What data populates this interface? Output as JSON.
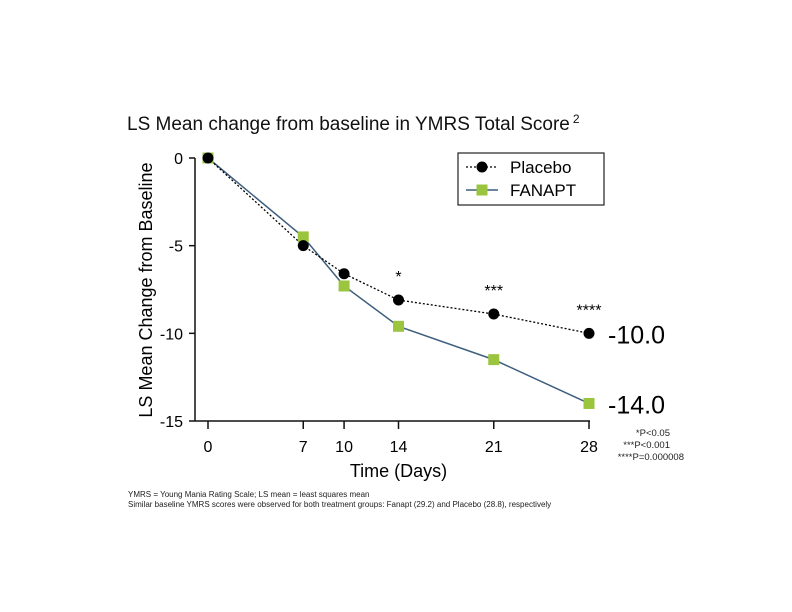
{
  "chart_data": {
    "type": "line",
    "title": "LS Mean change from baseline in YMRS Total Score",
    "title_superscript": "2",
    "xlabel": "Time (Days)",
    "ylabel": "LS Mean Change from Baseline",
    "x": [
      0,
      7,
      10,
      14,
      21,
      28
    ],
    "xticks": [
      "0",
      "7",
      "10",
      "14",
      "21",
      "28"
    ],
    "yticks": [
      0,
      -5,
      -10,
      -15
    ],
    "ytick_labels": [
      "0",
      "-5",
      "-10",
      "-15"
    ],
    "ylim": [
      -15,
      0
    ],
    "xlim": [
      0,
      28
    ],
    "legend_position": "top-right",
    "series": [
      {
        "name": "Placebo",
        "values": [
          0,
          -5.0,
          -6.6,
          -8.1,
          -8.9,
          -10.0
        ],
        "color": "#000000",
        "line": "dotted",
        "marker": "circle"
      },
      {
        "name": "FANAPT",
        "values": [
          0,
          -4.5,
          -7.3,
          -9.6,
          -11.5,
          -14.0
        ],
        "color": "#3e5f7d",
        "marker_color": "#9cc53f",
        "line": "solid",
        "marker": "square"
      }
    ],
    "annotations": [
      {
        "x": 14,
        "text": "*"
      },
      {
        "x": 21,
        "text": "***"
      },
      {
        "x": 28,
        "text": "****"
      }
    ],
    "end_labels": [
      "-10.0",
      "-14.0"
    ],
    "pvalue_notes": [
      "*P<0.05",
      "***P<0.001",
      "****P=0.000008"
    ]
  },
  "footnotes": [
    "YMRS = Young Mania Rating Scale; LS mean = least squares mean",
    "Similar baseline YMRS scores were observed for both treatment groups: Fanapt (29.2) and Placebo (28.8), respectively"
  ]
}
